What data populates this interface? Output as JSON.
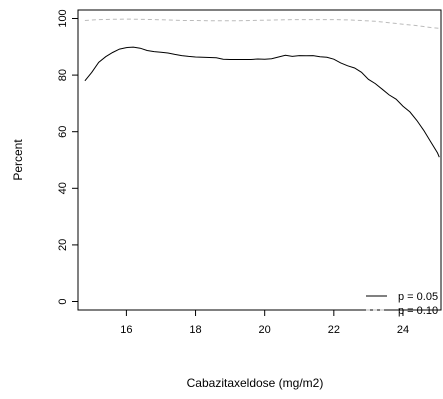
{
  "chart_data": {
    "type": "line",
    "xlabel": "Cabazitaxeldose (mg/m2)",
    "ylabel": "Percent",
    "xlim": [
      14.6,
      25.1
    ],
    "ylim": [
      -3,
      103
    ],
    "x_ticks": [
      16,
      18,
      20,
      22,
      24
    ],
    "y_ticks": [
      0,
      20,
      40,
      60,
      80,
      100
    ],
    "grid": false,
    "legend_position": "bottom-right",
    "series": [
      {
        "name": "p = 0.05",
        "line_style": "solid",
        "color": "#000000",
        "points": [
          [
            14.8,
            78
          ],
          [
            15.0,
            81
          ],
          [
            15.2,
            84.5
          ],
          [
            15.4,
            86.5
          ],
          [
            15.6,
            88
          ],
          [
            15.8,
            89.2
          ],
          [
            16.0,
            89.7
          ],
          [
            16.2,
            89.9
          ],
          [
            16.4,
            89.5
          ],
          [
            16.6,
            88.7
          ],
          [
            16.8,
            88.3
          ],
          [
            17.0,
            88.1
          ],
          [
            17.2,
            87.8
          ],
          [
            17.4,
            87.3
          ],
          [
            17.6,
            86.9
          ],
          [
            17.8,
            86.6
          ],
          [
            18.0,
            86.4
          ],
          [
            18.2,
            86.3
          ],
          [
            18.4,
            86.2
          ],
          [
            18.6,
            86.1
          ],
          [
            18.8,
            85.6
          ],
          [
            19.0,
            85.5
          ],
          [
            19.2,
            85.5
          ],
          [
            19.4,
            85.5
          ],
          [
            19.6,
            85.5
          ],
          [
            19.8,
            85.7
          ],
          [
            20.0,
            85.6
          ],
          [
            20.2,
            85.8
          ],
          [
            20.4,
            86.4
          ],
          [
            20.6,
            87.0
          ],
          [
            20.8,
            86.6
          ],
          [
            21.0,
            86.9
          ],
          [
            21.2,
            86.8
          ],
          [
            21.4,
            86.9
          ],
          [
            21.6,
            86.5
          ],
          [
            21.8,
            86.3
          ],
          [
            22.0,
            85.6
          ],
          [
            22.2,
            84.3
          ],
          [
            22.4,
            83.3
          ],
          [
            22.6,
            82.5
          ],
          [
            22.8,
            81.0
          ],
          [
            23.0,
            78.5
          ],
          [
            23.2,
            77.0
          ],
          [
            23.4,
            75.0
          ],
          [
            23.6,
            73.0
          ],
          [
            23.8,
            71.5
          ],
          [
            24.0,
            69.0
          ],
          [
            24.2,
            67.0
          ],
          [
            24.4,
            64.0
          ],
          [
            24.6,
            60.5
          ],
          [
            24.8,
            56.5
          ],
          [
            25.0,
            52.5
          ],
          [
            25.05,
            51.0
          ]
        ]
      },
      {
        "name": "p = 0.10",
        "line_style": "dashed",
        "color": "#bbbbbb",
        "points": [
          [
            14.8,
            99.3
          ],
          [
            15.2,
            99.6
          ],
          [
            15.6,
            99.7
          ],
          [
            16.0,
            99.8
          ],
          [
            16.4,
            99.7
          ],
          [
            16.8,
            99.6
          ],
          [
            17.2,
            99.5
          ],
          [
            17.6,
            99.3
          ],
          [
            18.0,
            99.3
          ],
          [
            18.4,
            99.2
          ],
          [
            18.8,
            99.2
          ],
          [
            19.2,
            99.2
          ],
          [
            19.6,
            99.3
          ],
          [
            20.0,
            99.4
          ],
          [
            20.4,
            99.5
          ],
          [
            20.8,
            99.6
          ],
          [
            21.2,
            99.6
          ],
          [
            21.6,
            99.6
          ],
          [
            22.0,
            99.6
          ],
          [
            22.4,
            99.5
          ],
          [
            22.8,
            99.3
          ],
          [
            23.2,
            99.0
          ],
          [
            23.6,
            98.5
          ],
          [
            24.0,
            98.0
          ],
          [
            24.4,
            97.5
          ],
          [
            24.8,
            96.8
          ],
          [
            25.05,
            96.5
          ]
        ]
      }
    ]
  }
}
